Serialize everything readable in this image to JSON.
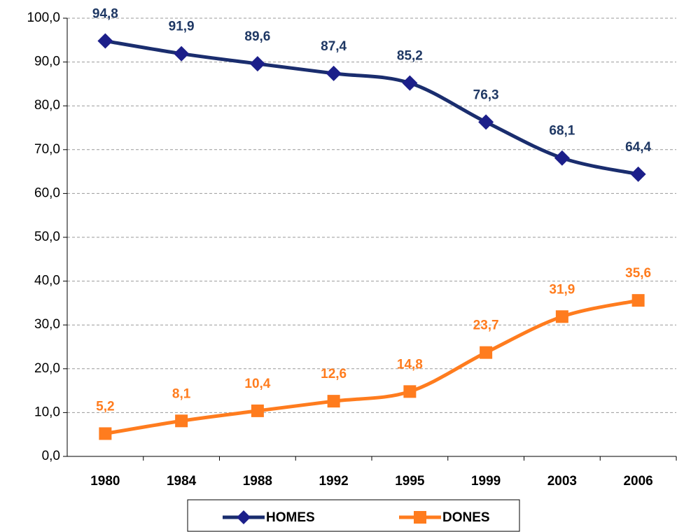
{
  "chart_data": {
    "type": "line",
    "categories": [
      "1980",
      "1984",
      "1988",
      "1992",
      "1995",
      "1999",
      "2003",
      "2006"
    ],
    "series": [
      {
        "name": "HOMES",
        "color": "#1a2d6e",
        "marker": "diamond",
        "label_color": "#1f3864",
        "values": [
          94.8,
          91.9,
          89.6,
          87.4,
          85.2,
          76.3,
          68.1,
          64.4
        ],
        "value_labels": [
          "94,8",
          "91,9",
          "89,6",
          "87,4",
          "85,2",
          "76,3",
          "68,1",
          "64,4"
        ]
      },
      {
        "name": "DONES",
        "color": "#ff7c1e",
        "marker": "square",
        "label_color": "#ff7c1e",
        "values": [
          5.2,
          8.1,
          10.4,
          12.6,
          14.8,
          23.7,
          31.9,
          35.6
        ],
        "value_labels": [
          "5,2",
          "8,1",
          "10,4",
          "12,6",
          "14,8",
          "23,7",
          "31,9",
          "35,6"
        ]
      }
    ],
    "ylim": [
      0,
      100
    ],
    "yticks": [
      {
        "value": 0,
        "label": "0,0"
      },
      {
        "value": 10,
        "label": "10,0"
      },
      {
        "value": 20,
        "label": "20,0"
      },
      {
        "value": 30,
        "label": "30,0"
      },
      {
        "value": 40,
        "label": "40,0"
      },
      {
        "value": 50,
        "label": "50,0"
      },
      {
        "value": 60,
        "label": "60,0"
      },
      {
        "value": 70,
        "label": "70,0"
      },
      {
        "value": 80,
        "label": "80,0"
      },
      {
        "value": 90,
        "label": "90,0"
      },
      {
        "value": 100,
        "label": "100,0"
      }
    ],
    "grid": true,
    "legend": "bottom"
  }
}
